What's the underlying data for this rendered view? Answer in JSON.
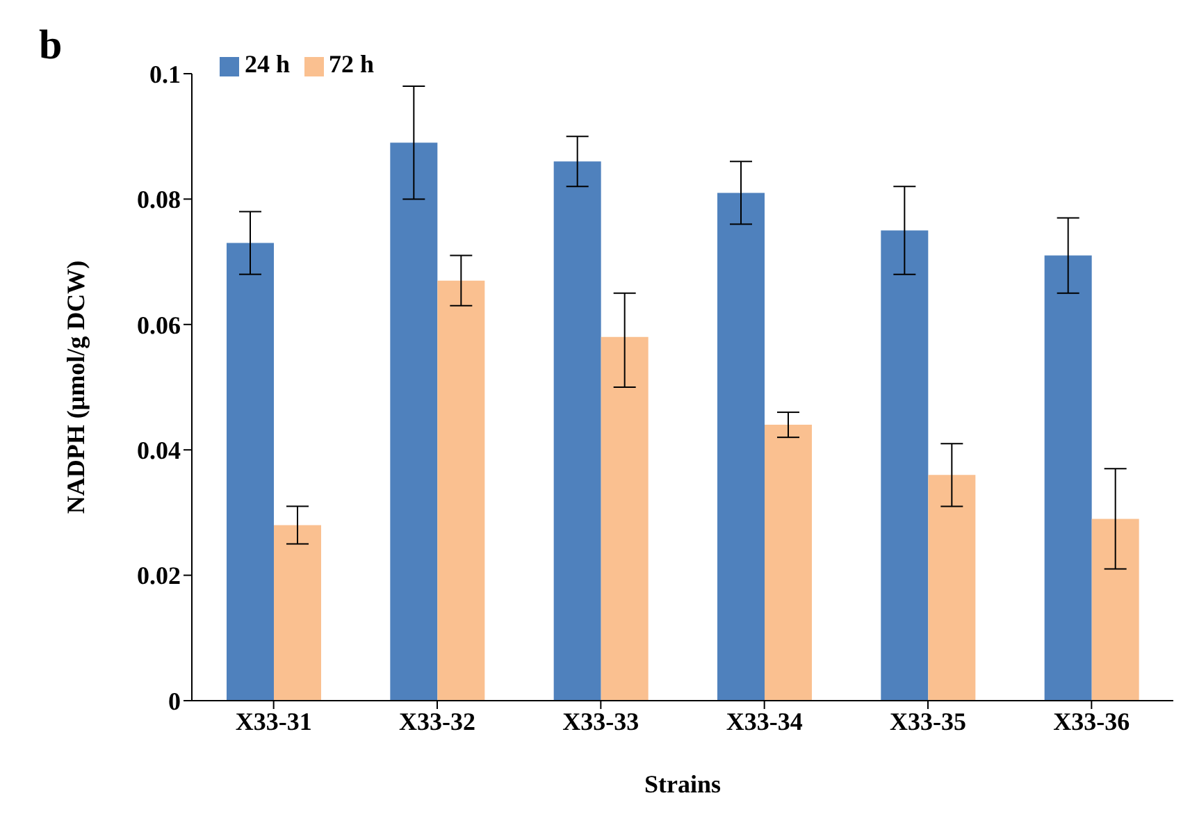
{
  "chart_data": {
    "type": "bar",
    "title": "b",
    "xlabel": "Strains",
    "ylabel": "NADPH (μmol/g DCW)",
    "categories": [
      "X33-31",
      "X33-32",
      "X33-33",
      "X33-34",
      "X33-35",
      "X33-36"
    ],
    "series": [
      {
        "name": "24 h",
        "color": "#4f81bd",
        "values": [
          0.073,
          0.089,
          0.086,
          0.081,
          0.075,
          0.071
        ],
        "errors": [
          [
            0.068,
            0.078
          ],
          [
            0.08,
            0.098
          ],
          [
            0.082,
            0.09
          ],
          [
            0.076,
            0.086
          ],
          [
            0.068,
            0.082
          ],
          [
            0.065,
            0.077
          ]
        ]
      },
      {
        "name": "72 h",
        "color": "#fac090",
        "values": [
          0.028,
          0.067,
          0.058,
          0.044,
          0.036,
          0.029
        ],
        "errors": [
          [
            0.025,
            0.031
          ],
          [
            0.063,
            0.071
          ],
          [
            0.05,
            0.065
          ],
          [
            0.042,
            0.046
          ],
          [
            0.031,
            0.041
          ],
          [
            0.021,
            0.037
          ]
        ]
      }
    ],
    "ylim": [
      0,
      0.1
    ],
    "yticks": [
      0,
      0.02,
      0.04,
      0.06,
      0.08,
      0.1
    ],
    "grid": false,
    "legend": "top left"
  }
}
